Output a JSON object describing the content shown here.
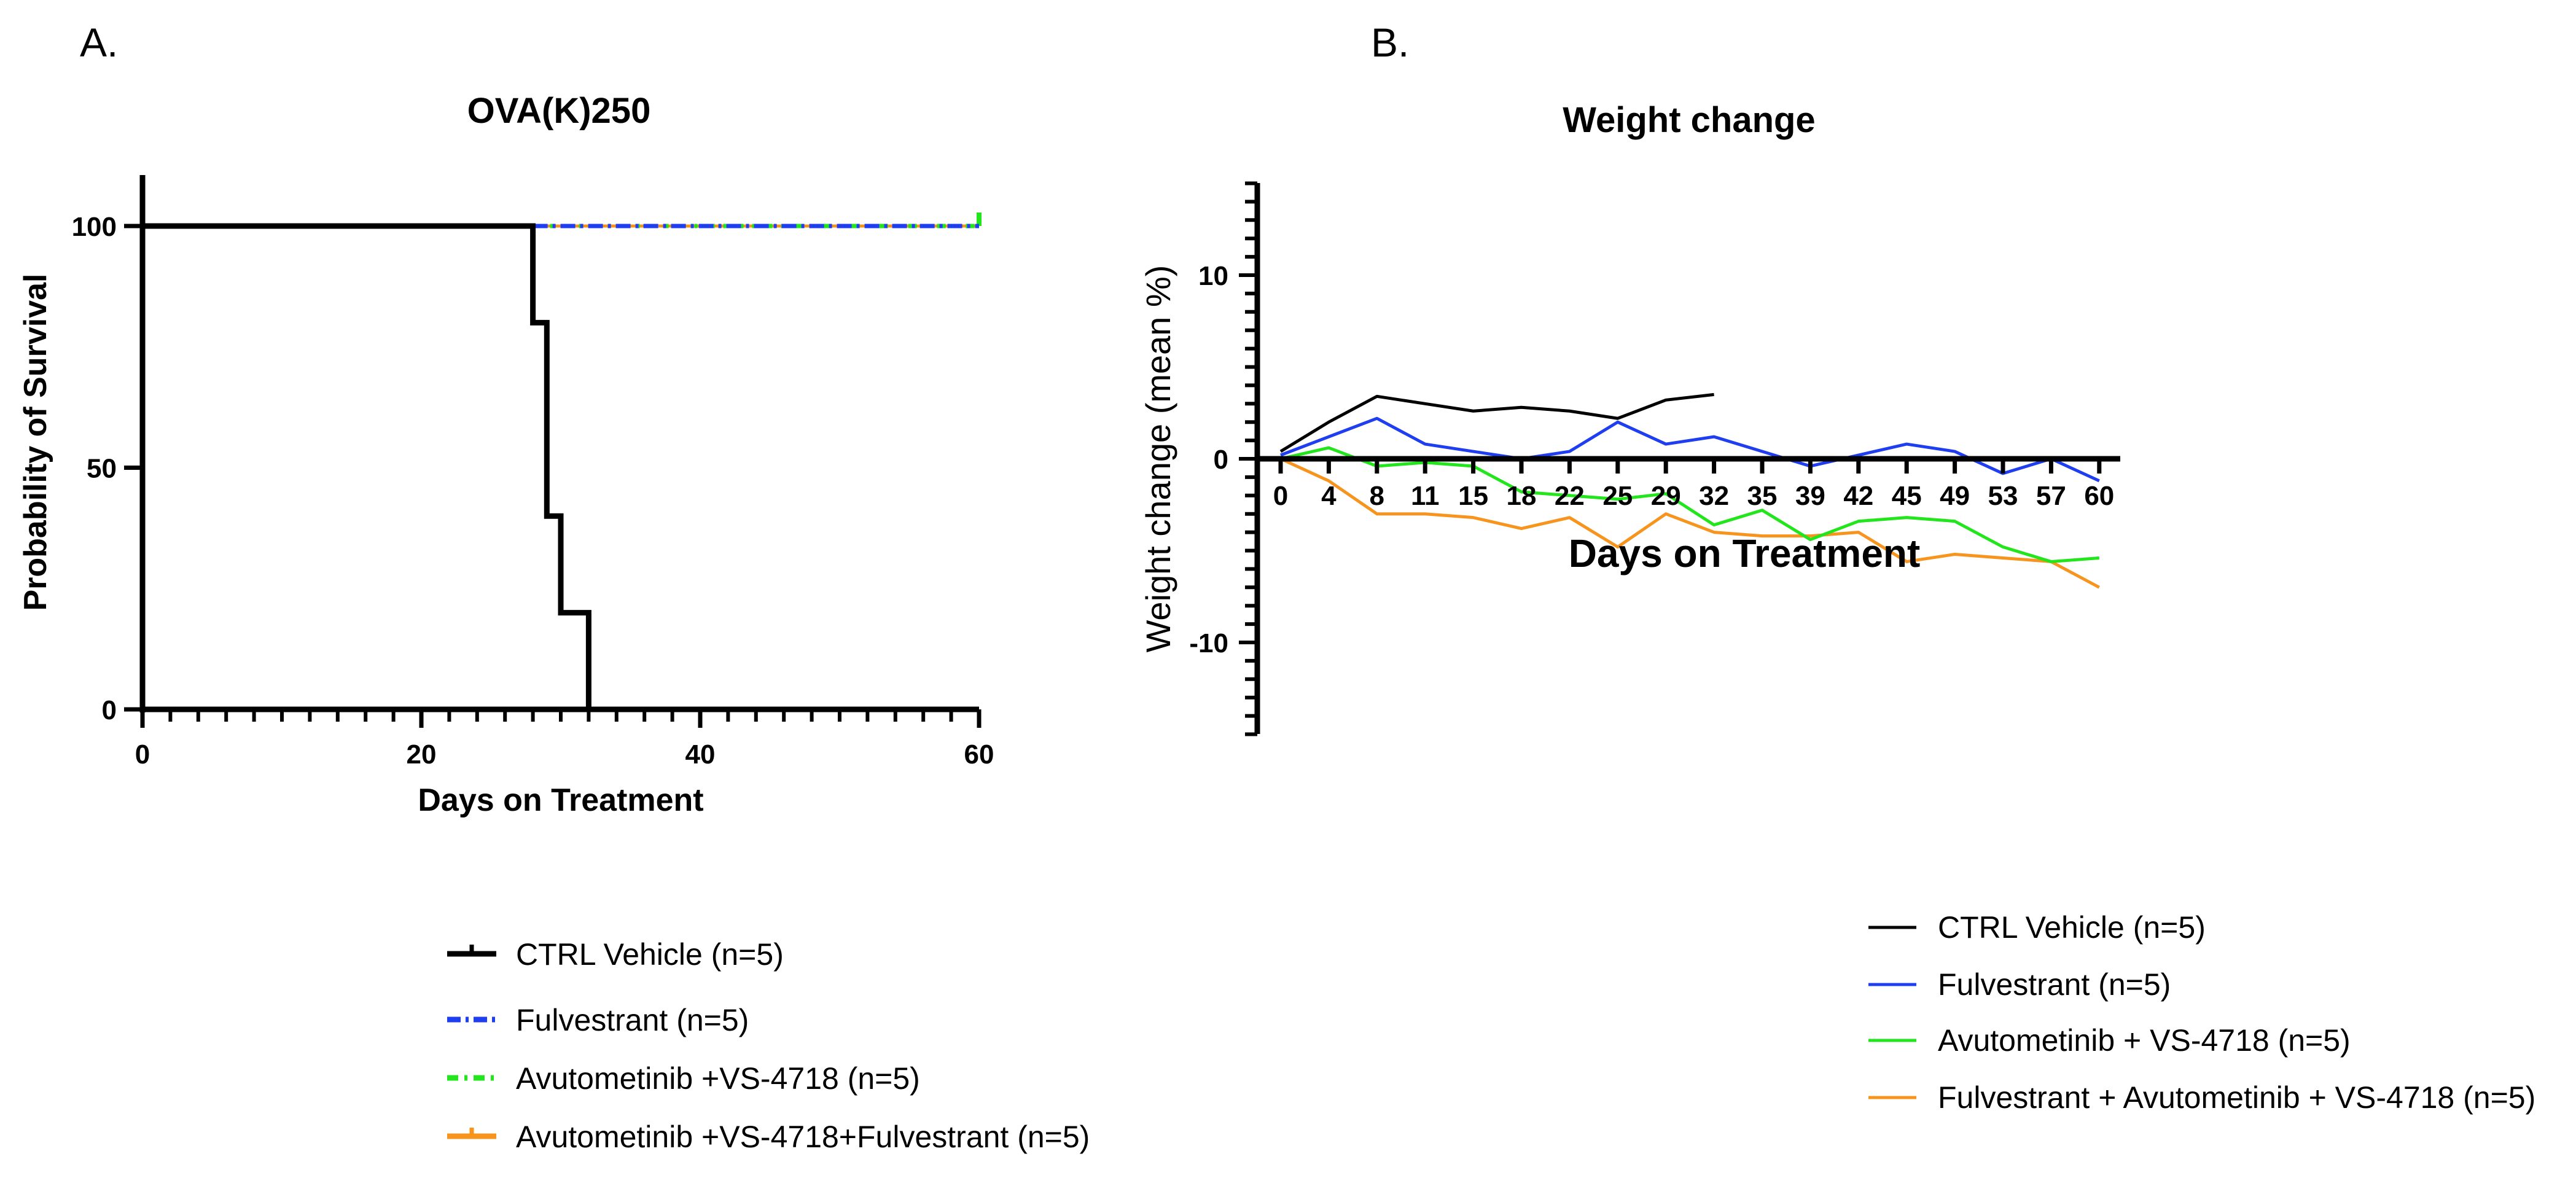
{
  "panels": {
    "a_label": "A.",
    "b_label": "B."
  },
  "chart_data": [
    {
      "type": "line",
      "subtype": "kaplan-meier",
      "title": "OVA(K)250",
      "xlabel": "Days on Treatment",
      "ylabel": "Probability of Survival",
      "xlim": [
        0,
        60
      ],
      "ylim": [
        0,
        100
      ],
      "xticks": [
        0,
        20,
        40,
        60
      ],
      "yticks": [
        0,
        50,
        100
      ],
      "legend_position": "bottom",
      "series": [
        {
          "name": "CTRL Vehicle (n=5)",
          "color": "#000000",
          "dash": "solid",
          "steps": [
            [
              0,
              100
            ],
            [
              28,
              100
            ],
            [
              28,
              80
            ],
            [
              29,
              80
            ],
            [
              29,
              40
            ],
            [
              30,
              40
            ],
            [
              30,
              20
            ],
            [
              32,
              20
            ],
            [
              32,
              0
            ]
          ]
        },
        {
          "name": "Fulvestrant (n=5)",
          "color": "#1f3ef0",
          "dash": "dashdot",
          "steps": [
            [
              28,
              100
            ],
            [
              60,
              100
            ]
          ]
        },
        {
          "name": "Avutometinib +VS-4718 (n=5)",
          "color": "#22e51c",
          "dash": "dotted",
          "steps": [
            [
              28,
              100
            ],
            [
              60,
              100
            ]
          ]
        },
        {
          "name": "Avutometinib +VS-4718+Fulvestrant (n=5)",
          "color": "#f7941d",
          "dash": "solid",
          "steps": [
            [
              28,
              100
            ],
            [
              60,
              100
            ]
          ]
        }
      ]
    },
    {
      "type": "line",
      "title": "Weight change",
      "xlabel": "Days on Treatment",
      "ylabel": "Weight change (mean %)",
      "ylim": [
        -15,
        15
      ],
      "yticks": [
        -10,
        0,
        10
      ],
      "categories": [
        "0",
        "4",
        "8",
        "11",
        "15",
        "18",
        "22",
        "25",
        "29",
        "32",
        "35",
        "39",
        "42",
        "45",
        "49",
        "53",
        "57",
        "60"
      ],
      "legend_position": "bottom-right",
      "series": [
        {
          "name": "CTRL Vehicle (n=5)",
          "color": "#000000",
          "values": [
            0.4,
            2.0,
            3.4,
            3.0,
            2.6,
            2.8,
            2.6,
            2.2,
            3.2,
            3.5,
            null,
            null,
            null,
            null,
            null,
            null,
            null,
            null
          ]
        },
        {
          "name": "Fulvestrant (n=5)",
          "color": "#1f3ef0",
          "values": [
            0.2,
            1.2,
            2.2,
            0.8,
            0.4,
            0.0,
            0.4,
            2.0,
            0.8,
            1.2,
            0.4,
            -0.4,
            0.2,
            0.8,
            0.4,
            -0.8,
            0.0,
            -1.2
          ]
        },
        {
          "name": "Avutometinib + VS-4718 (n=5)",
          "color": "#22e51c",
          "values": [
            0.0,
            0.6,
            -0.4,
            -0.2,
            -0.4,
            -1.8,
            -2.0,
            -2.2,
            -1.9,
            -3.6,
            -2.8,
            -4.4,
            -3.4,
            -3.2,
            -3.4,
            -4.8,
            -5.6,
            -5.4
          ]
        },
        {
          "name": "Fulvestrant + Avutometinib + VS-4718 (n=5)",
          "color": "#f7941d",
          "values": [
            0.0,
            -1.2,
            -3.0,
            -3.0,
            -3.2,
            -3.8,
            -3.2,
            -4.8,
            -3.0,
            -4.0,
            -4.2,
            -4.2,
            -4.0,
            -5.6,
            -5.2,
            -5.4,
            -5.6,
            -7.0
          ]
        }
      ]
    }
  ]
}
